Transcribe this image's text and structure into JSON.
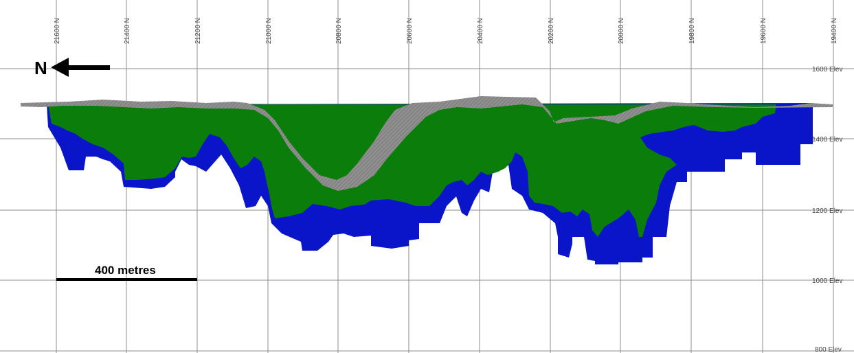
{
  "section": {
    "northing_labels": [
      "21600 N",
      "21400 N",
      "21200 N",
      "21000 N",
      "20800 N",
      "20600 N",
      "20400 N",
      "20200 N",
      "20000 N",
      "19800 N",
      "19600 N",
      "19400 N"
    ],
    "elevation_labels": [
      "1600 Elev",
      "1400 Elev",
      "1200 Elev",
      "1000 Elev",
      "800 Elev"
    ],
    "north_arrow_label": "N",
    "scale_bar_label": "400 metres"
  },
  "colors": {
    "background": "#ffffff",
    "grid": "#8c8c8c",
    "topography": "#8a8a8a",
    "zone_green": "#0b7d0b",
    "zone_blue": "#0a14c8"
  }
}
